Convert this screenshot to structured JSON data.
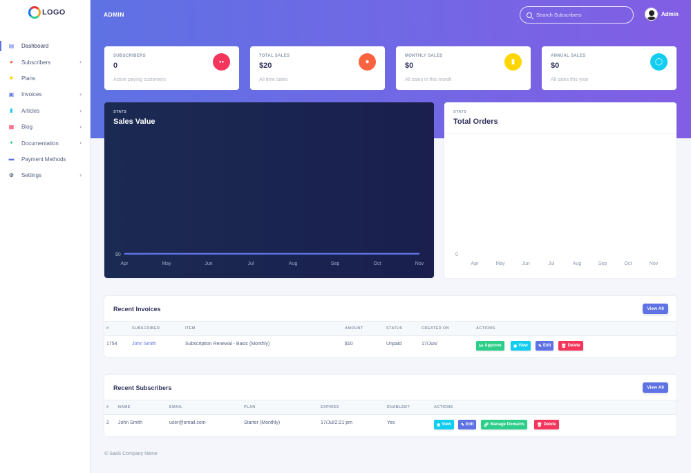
{
  "brand": {
    "logo_text": "LOGO"
  },
  "sidebar": {
    "items": [
      {
        "label": "Dashboard",
        "icon": "monitor-icon",
        "color": "#5e72e4",
        "chevron": false,
        "active": true
      },
      {
        "label": "Subscribers",
        "icon": "user-icon",
        "color": "#fb6340",
        "chevron": true
      },
      {
        "label": "Plans",
        "icon": "briefcase-icon",
        "color": "#ffd600",
        "chevron": false
      },
      {
        "label": "Invoices",
        "icon": "document-icon",
        "color": "#5e72e4",
        "chevron": true
      },
      {
        "label": "Articles",
        "icon": "books-icon",
        "color": "#11cdef",
        "chevron": true
      },
      {
        "label": "Blog",
        "icon": "chart-bars-icon",
        "color": "#f5365c",
        "chevron": true
      },
      {
        "label": "Documentation",
        "icon": "puzzle-icon",
        "color": "#2dce89",
        "chevron": true
      },
      {
        "label": "Payment Methods",
        "icon": "credit-card-icon",
        "color": "#5e72e4",
        "chevron": false
      },
      {
        "label": "Settings",
        "icon": "gear-icon",
        "color": "#172b4d",
        "chevron": true
      }
    ]
  },
  "header": {
    "title": "ADMIN",
    "search_placeholder": "Search Subscribers",
    "user_name": "Admin"
  },
  "stats": [
    {
      "label": "SUBSCRIBERS",
      "value": "0",
      "footer": "Active paying customers",
      "icon": "users-icon",
      "color": "#f5365c"
    },
    {
      "label": "TOTAL SALES",
      "value": "$20",
      "footer": "All time sales",
      "icon": "hand-coin-icon",
      "color": "#fb6340"
    },
    {
      "label": "MONTHLY SALES",
      "value": "$0",
      "footer": "All sales in this month",
      "icon": "receipt-icon",
      "color": "#ffd600"
    },
    {
      "label": "ANNUAL SALES",
      "value": "$0",
      "footer": "All sales this year",
      "icon": "zoom-icon",
      "color": "#11cdef"
    }
  ],
  "charts": {
    "sales": {
      "kicker": "STATS",
      "title": "Sales Value"
    },
    "orders": {
      "kicker": "STATS",
      "title": "Total Orders"
    }
  },
  "chart_data": [
    {
      "type": "line",
      "title": "Sales Value",
      "categories": [
        "Apr",
        "May",
        "Jun",
        "Jul",
        "Aug",
        "Sep",
        "Oct",
        "Nov"
      ],
      "series": [
        {
          "values": [
            0,
            0,
            0,
            0,
            0,
            0,
            0,
            0
          ]
        }
      ],
      "y_tick_labels": [
        "$0"
      ],
      "color": "#5e72e4"
    },
    {
      "type": "bar",
      "title": "Total Orders",
      "categories": [
        "Apr",
        "May",
        "Jun",
        "Jul",
        "Aug",
        "Sep",
        "Oct",
        "Nov"
      ],
      "series": [
        {
          "values": [
            0,
            0,
            0,
            0,
            0,
            0,
            0,
            0
          ]
        }
      ],
      "y_tick_labels": [
        "0"
      ]
    }
  ],
  "invoices": {
    "title": "Recent Invoices",
    "view_all": "View All",
    "columns": [
      "#",
      "SUBSCRIBER",
      "ITEM",
      "AMOUNT",
      "STATUS",
      "CREATED ON",
      "ACTIONS"
    ],
    "rows": [
      {
        "id": "1754",
        "subscriber": "John Smith",
        "item": "Subscription Renewal - Basic (Monthly)",
        "amount": "$10",
        "status": "Unpaid",
        "created": "17/Jun/"
      }
    ],
    "actions": {
      "approve": "Approve",
      "view": "View",
      "edit": "Edit",
      "delete": "Delete"
    }
  },
  "subscribers": {
    "title": "Recent Subscribers",
    "view_all": "View All",
    "columns": [
      "#",
      "NAME",
      "EMAIL",
      "PLAN",
      "EXPIRES",
      "ENABLED?",
      "ACTIONS"
    ],
    "rows": [
      {
        "id": "2",
        "name": "John Smith",
        "email": "user@email.com",
        "plan": "Starter (Monthly)",
        "expires": "17/Jul/2:21 pm",
        "enabled": "Yes"
      }
    ],
    "actions": {
      "view": "View",
      "edit": "Edit",
      "manage": "Manage Domains",
      "delete": "Delete"
    }
  },
  "footer": {
    "text": "© SaaS Company Name"
  }
}
